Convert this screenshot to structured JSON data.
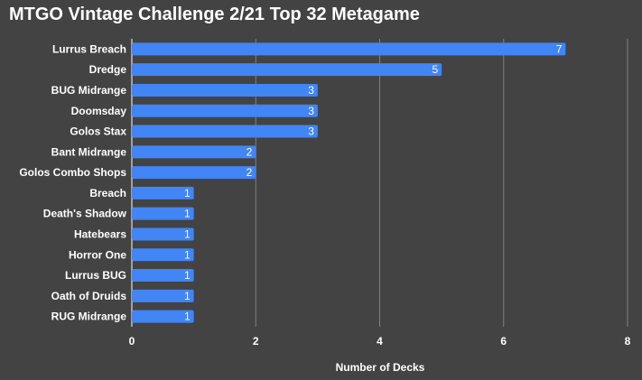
{
  "chart_data": {
    "type": "bar",
    "orientation": "horizontal",
    "title": "MTGO Vintage Challenge 2/21 Top 32 Metagame",
    "xlabel": "Number of Decks",
    "ylabel": "",
    "categories": [
      "Lurrus Breach",
      "Dredge",
      "BUG Midrange",
      "Doomsday",
      "Golos Stax",
      "Bant Midrange",
      "Golos Combo Shops",
      "Breach",
      "Death's Shadow",
      "Hatebears",
      "Horror One",
      "Lurrus BUG",
      "Oath of Druids",
      "RUG Midrange"
    ],
    "values": [
      7,
      5,
      3,
      3,
      3,
      2,
      2,
      1,
      1,
      1,
      1,
      1,
      1,
      1
    ],
    "xlim": [
      0,
      8
    ],
    "xticks": [
      0,
      2,
      4,
      6,
      8
    ],
    "grid": true,
    "legend": "none",
    "colors": {
      "background": "#434343",
      "bar": "#4285f4",
      "grid": "#808080",
      "axis": "#ffffff",
      "text": "#ffffff"
    }
  }
}
